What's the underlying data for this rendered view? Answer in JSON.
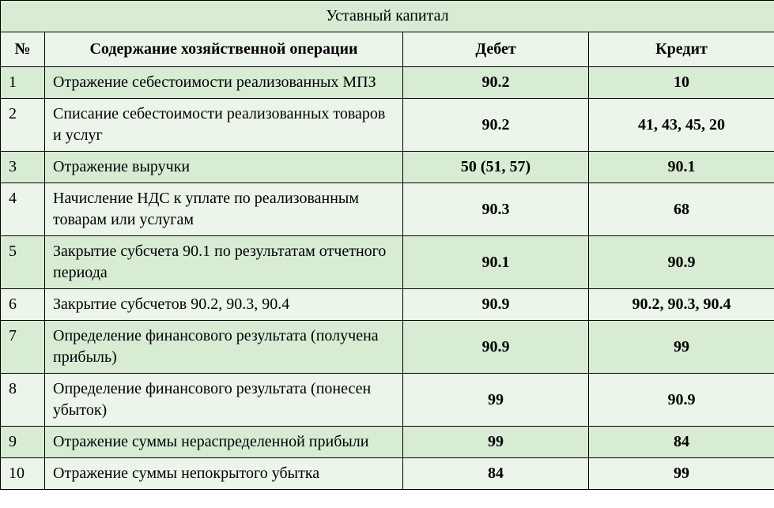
{
  "table": {
    "title": "Уставный капитал",
    "background_color_even": "#d8ecd4",
    "background_color_odd": "#ecf5ea",
    "border_color": "#000000",
    "font_family": "Times New Roman",
    "title_fontsize": 20,
    "header_fontsize": 20,
    "cell_fontsize": 20,
    "columns": {
      "num": "№",
      "desc": "Содержание хозяйственной операции",
      "debit": "Дебет",
      "credit": "Кредит"
    },
    "col_widths": {
      "num": 56,
      "desc": 453,
      "debit": 235,
      "credit": 235
    },
    "rows": [
      {
        "num": "1",
        "desc": "Отражение себестоимости реализованных МПЗ",
        "debit": "90.2",
        "credit": "10"
      },
      {
        "num": "2",
        "desc": "Списание себестоимости реализованных товаров и услуг",
        "debit": "90.2",
        "credit": "41, 43, 45, 20"
      },
      {
        "num": "3",
        "desc": "Отражение выручки",
        "debit": "50 (51, 57)",
        "credit": "90.1"
      },
      {
        "num": "4",
        "desc": "Начисление НДС к уплате по реализованным товарам или услугам",
        "debit": "90.3",
        "credit": "68"
      },
      {
        "num": "5",
        "desc": "Закрытие субсчета 90.1 по результатам отчетного периода",
        "debit": "90.1",
        "credit": "90.9"
      },
      {
        "num": "6",
        "desc": "Закрытие субсчетов 90.2, 90.3, 90.4",
        "debit": "90.9",
        "credit": "90.2, 90.3, 90.4"
      },
      {
        "num": "7",
        "desc": "Определение финансового результата (получена прибыль)",
        "debit": "90.9",
        "credit": "99"
      },
      {
        "num": "8",
        "desc": "Определение финансового результата (понесен убыток)",
        "debit": "99",
        "credit": "90.9"
      },
      {
        "num": "9",
        "desc": "Отражение суммы нераспределенной прибыли",
        "debit": "99",
        "credit": "84"
      },
      {
        "num": "10",
        "desc": "Отражение суммы непокрытого убытка",
        "debit": "84",
        "credit": "99"
      }
    ]
  }
}
